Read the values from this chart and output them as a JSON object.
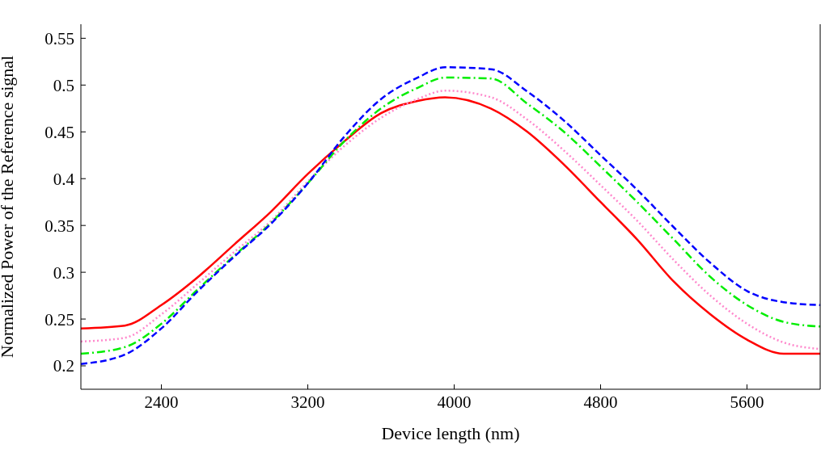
{
  "chart_data": {
    "type": "line",
    "xlabel": "Device length (nm)",
    "ylabel": "Normalized Power of the Reference signal",
    "x": [
      1960,
      2200,
      2400,
      2600,
      2800,
      3000,
      3200,
      3400,
      3600,
      3800,
      3950,
      4200,
      4400,
      4600,
      4800,
      5000,
      5200,
      5400,
      5600,
      5800,
      6000
    ],
    "series": [
      {
        "color": "#ff0000",
        "line_style": "solid",
        "values": [
          0.24,
          0.243,
          0.265,
          0.295,
          0.33,
          0.365,
          0.405,
          0.44,
          0.47,
          0.483,
          0.487,
          0.475,
          0.45,
          0.415,
          0.375,
          0.335,
          0.29,
          0.255,
          0.228,
          0.213,
          0.213
        ]
      },
      {
        "color": "#ff88cc",
        "line_style": "dotted",
        "values": [
          0.226,
          0.23,
          0.255,
          0.288,
          0.322,
          0.355,
          0.397,
          0.435,
          0.465,
          0.485,
          0.494,
          0.487,
          0.463,
          0.43,
          0.393,
          0.355,
          0.313,
          0.275,
          0.245,
          0.225,
          0.218
        ]
      },
      {
        "color": "#00ee00",
        "line_style": "dashdot",
        "values": [
          0.213,
          0.22,
          0.245,
          0.282,
          0.318,
          0.353,
          0.395,
          0.44,
          0.475,
          0.497,
          0.508,
          0.507,
          0.48,
          0.45,
          0.413,
          0.375,
          0.335,
          0.295,
          0.265,
          0.247,
          0.242
        ]
      },
      {
        "color": "#0000ff",
        "line_style": "dashed",
        "values": [
          0.202,
          0.212,
          0.24,
          0.28,
          0.317,
          0.352,
          0.395,
          0.445,
          0.485,
          0.508,
          0.519,
          0.517,
          0.493,
          0.462,
          0.425,
          0.388,
          0.348,
          0.31,
          0.28,
          0.268,
          0.265
        ]
      }
    ],
    "xlim": [
      1960,
      6000
    ],
    "xticks": [
      2400,
      3200,
      4000,
      4800,
      5600
    ],
    "ylim": [
      0.175,
      0.565
    ],
    "yticks": [
      0.2,
      0.25,
      0.3,
      0.35,
      0.4,
      0.45,
      0.5,
      0.55
    ],
    "grid": false,
    "marker": "none"
  }
}
